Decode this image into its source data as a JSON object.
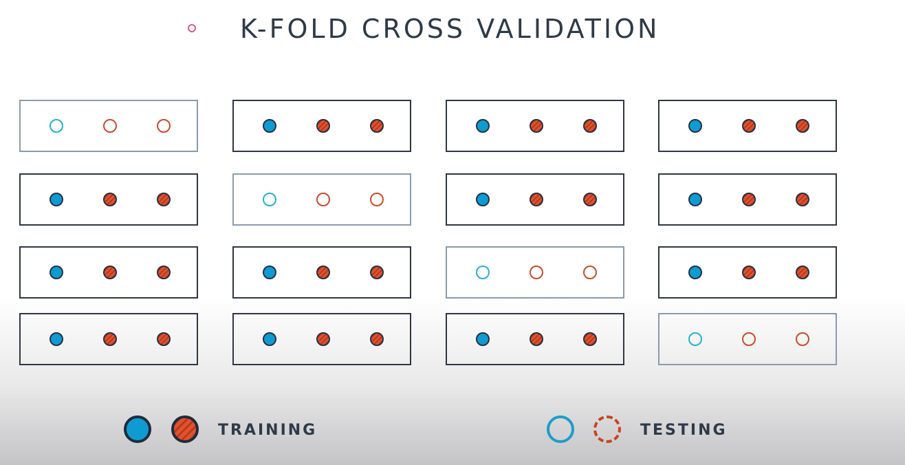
{
  "header": {
    "title": "K-FOLD CROSS VALIDATION"
  },
  "legend": {
    "training_label": "TRAINING",
    "testing_label": "TESTING"
  },
  "diagram": {
    "columns": 4,
    "rows": 4,
    "points_per_fold": 3,
    "test_fold_by_column": [
      1,
      2,
      3,
      4
    ],
    "legend_meaning": {
      "filled": "training",
      "hollow": "testing"
    }
  },
  "colors": {
    "title_text": "#2f3a48",
    "bullet": "#e0588a",
    "training_blue": "#0e9bd1",
    "training_red": "#e0532e",
    "testing_blue": "#22b2d8",
    "testing_red": "#cf4a25",
    "fold_border": "#2f3542",
    "test_fold_border": "#8a9aad"
  }
}
